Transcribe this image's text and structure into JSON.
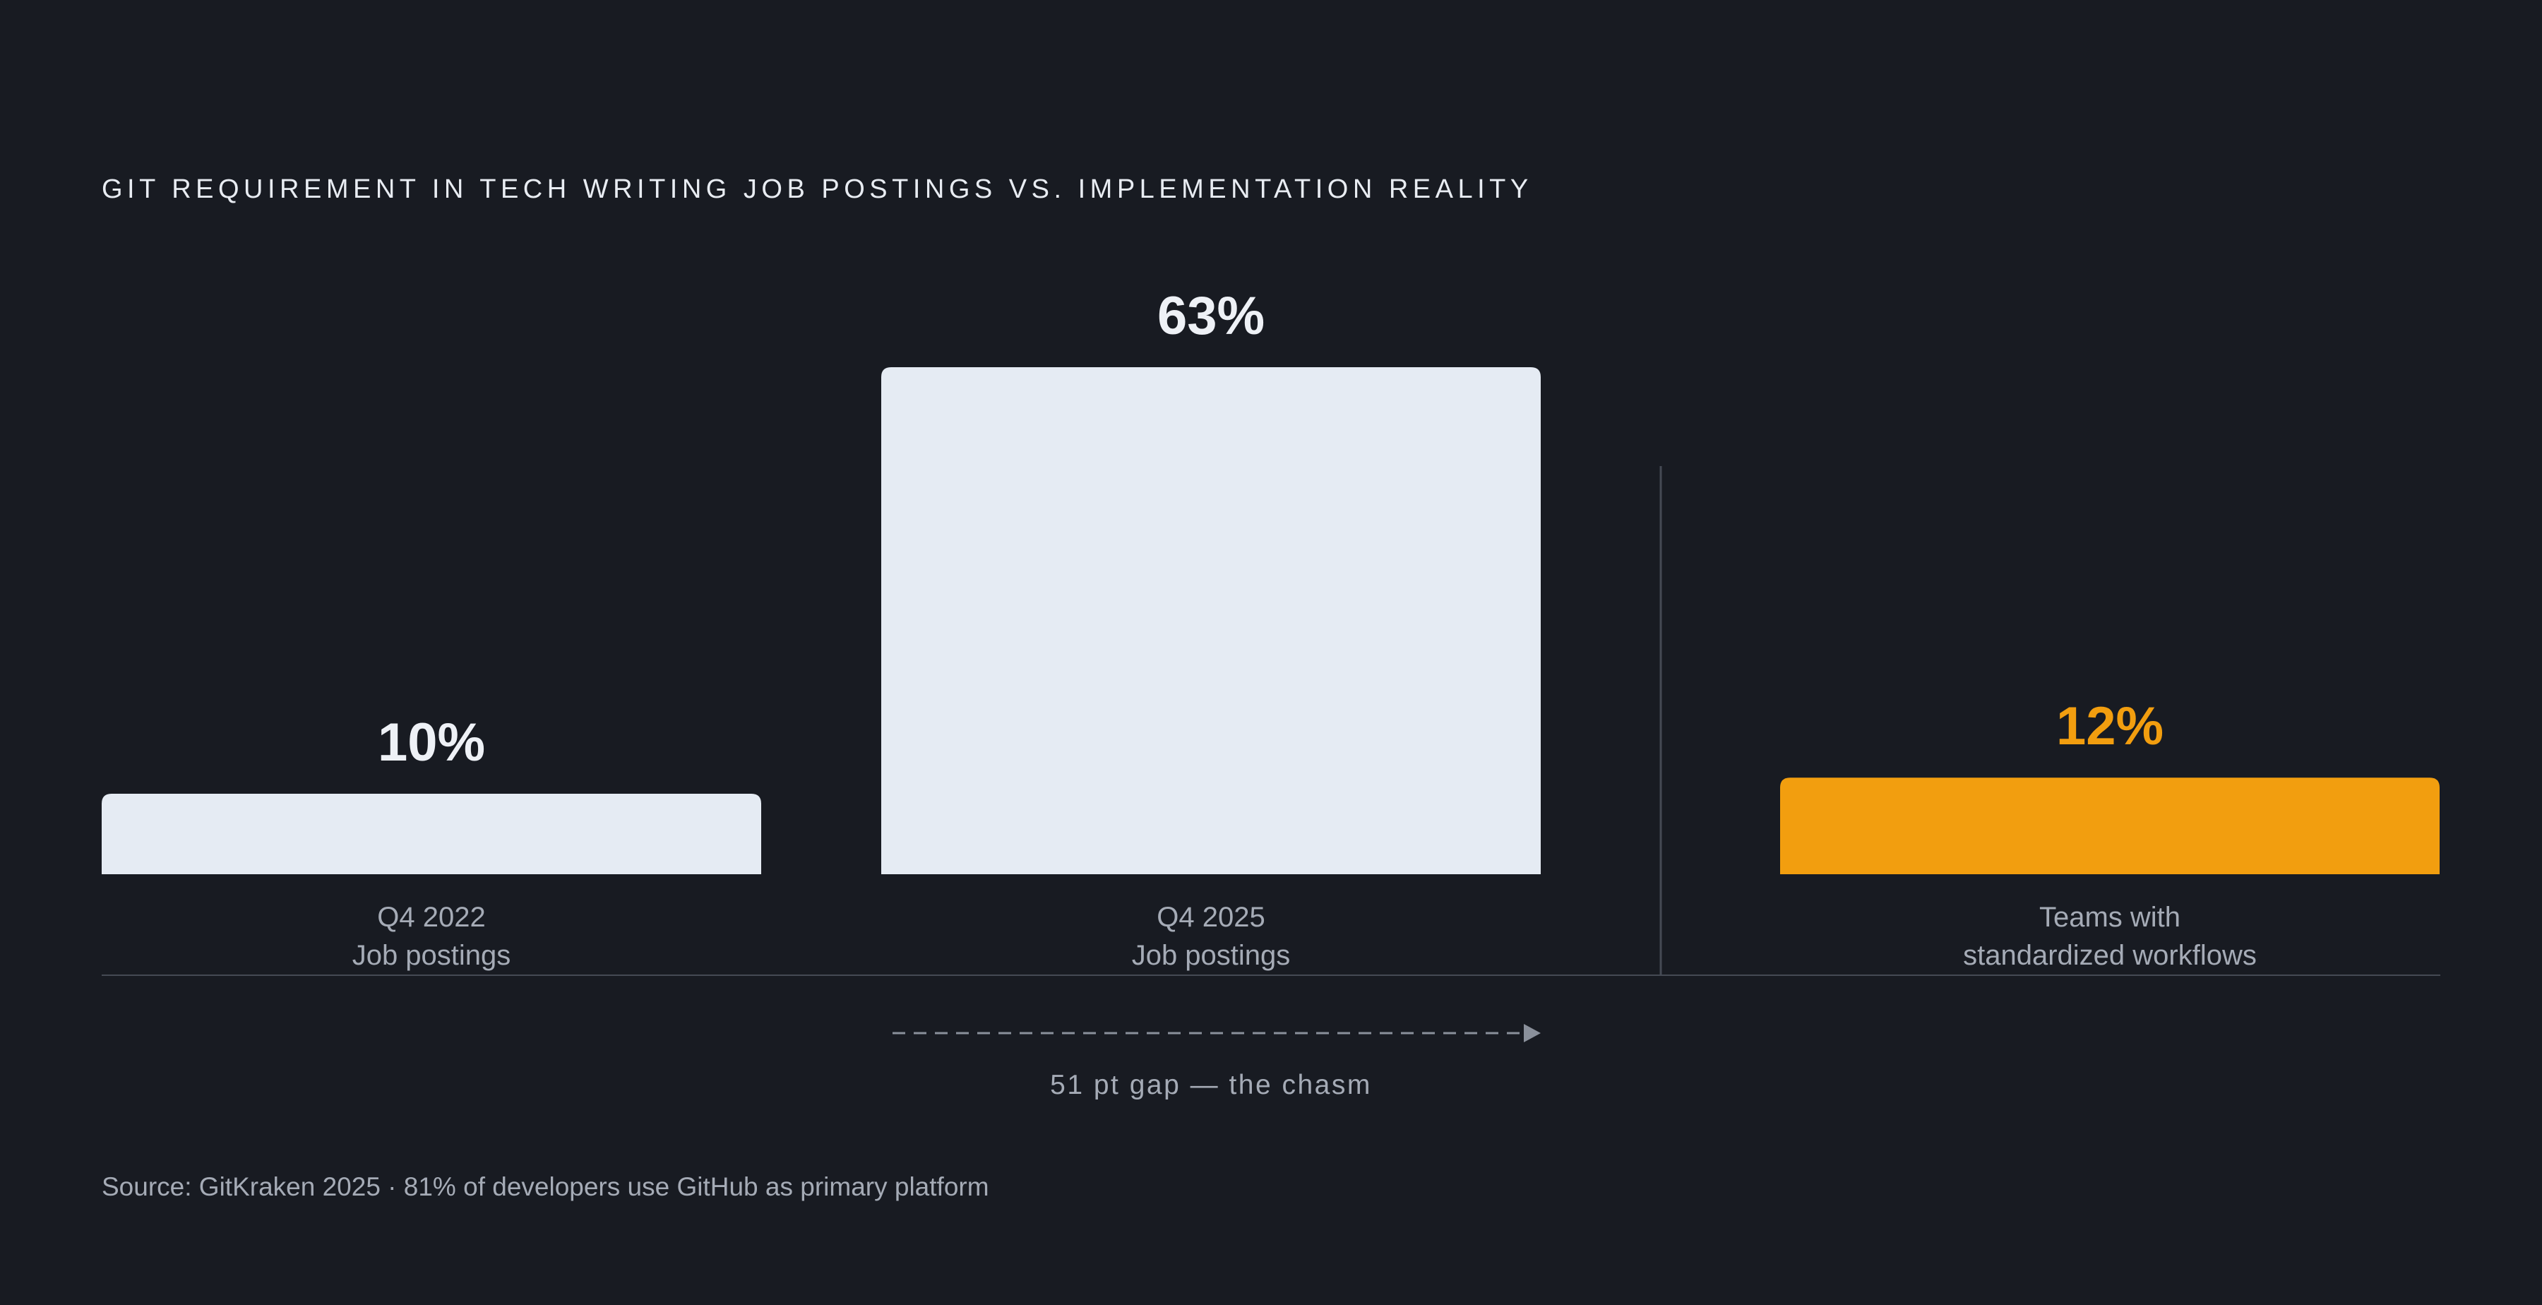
{
  "chart_data": {
    "type": "bar",
    "title": "GIT REQUIREMENT IN TECH WRITING JOB POSTINGS VS. IMPLEMENTATION REALITY",
    "categories": [
      [
        "Q4 2022",
        "Job postings"
      ],
      [
        "Q4 2025",
        "Job postings"
      ],
      [
        "Teams with",
        "standardized workflows"
      ]
    ],
    "values": [
      10,
      63,
      12
    ],
    "value_labels": [
      "10%",
      "63%",
      "12%"
    ],
    "bar_colors": [
      "#e5ebf3",
      "#e5ebf3",
      "#f29e0f"
    ],
    "value_label_colors": [
      "#eef1f6",
      "#eef1f6",
      "#f29e0f"
    ],
    "ylim": [
      0,
      63
    ],
    "grid": false,
    "annotation": {
      "text": "51 pt gap — the chasm",
      "from_category": 0,
      "to_category": 1
    },
    "source": "Source: GitKraken 2025 · 81% of developers use GitHub as primary platform"
  },
  "colors": {
    "background": "#181b22",
    "baseline": "#454a54",
    "divider": "#454a54",
    "arrow": "#8a909b"
  }
}
